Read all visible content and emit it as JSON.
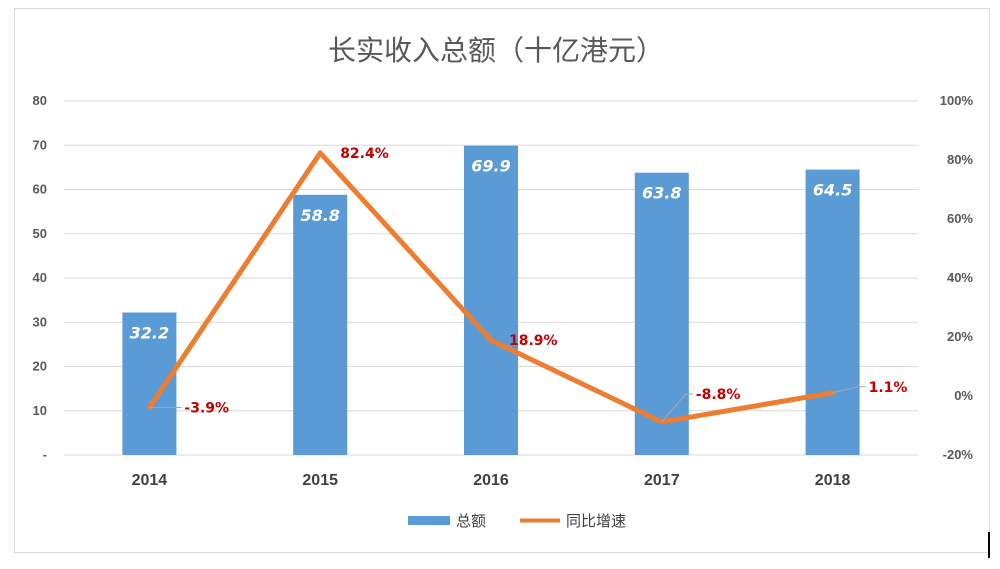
{
  "chart_data": {
    "type": "bar",
    "title": "长实收入总额（十亿港元）",
    "categories": [
      "2014",
      "2015",
      "2016",
      "2017",
      "2018"
    ],
    "series": [
      {
        "name": "总额",
        "type": "bar",
        "axis": "left",
        "color": "#5b9bd5",
        "values": [
          32.2,
          58.8,
          69.9,
          63.8,
          64.5
        ],
        "labels": [
          "32.2",
          "58.8",
          "69.9",
          "63.8",
          "64.5"
        ]
      },
      {
        "name": "同比增速",
        "type": "line",
        "axis": "right",
        "color": "#ed7d31",
        "values": [
          -3.9,
          82.4,
          18.9,
          -8.8,
          1.1
        ],
        "labels": [
          "-3.9%",
          "82.4%",
          "18.9%",
          "-8.8%",
          "1.1%"
        ]
      }
    ],
    "y_left": {
      "min": 0,
      "max": 80,
      "ticks": [
        "-",
        "10",
        "20",
        "30",
        "40",
        "50",
        "60",
        "70",
        "80"
      ]
    },
    "y_right": {
      "min": -20,
      "max": 100,
      "ticks": [
        "-20%",
        "0%",
        "20%",
        "40%",
        "60%",
        "80%",
        "100%"
      ]
    },
    "grid": true,
    "legend_position": "bottom",
    "label_color": "#c00000"
  }
}
